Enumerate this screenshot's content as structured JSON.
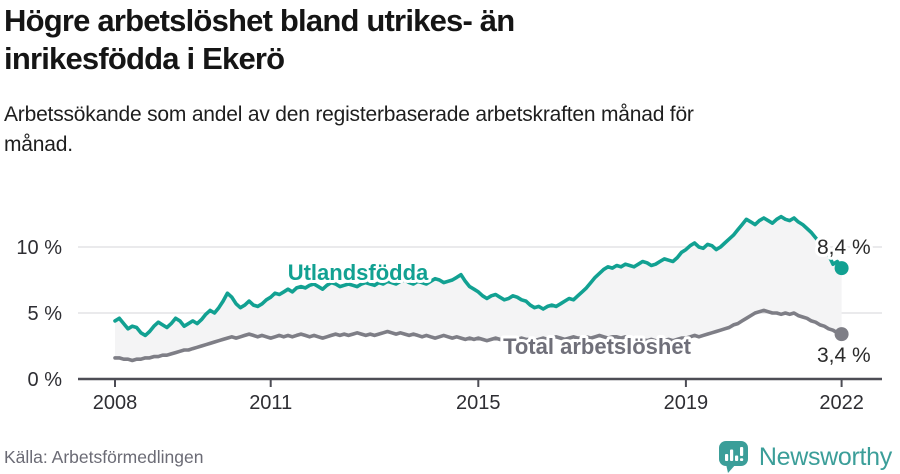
{
  "header": {
    "title": "Högre arbetslöshet bland utrikes- än inrikesfödda i Ekerö",
    "title_lines": [
      "Högre arbetslöshet bland utrikes- än",
      "inrikesfödda i Ekerö"
    ],
    "subtitle": "Arbetssökande som andel av den registerbaserade arbetskraften månad för månad.",
    "subtitle_lines": [
      "Arbetssökande som andel av den registerbaserade arbetskraften månad för",
      "månad."
    ]
  },
  "footer": {
    "source": "Källa: Arbetsförmedlingen",
    "brand": "Newsworthy"
  },
  "colors": {
    "foreign_line": "#12a192",
    "total_line": "#7e7e86",
    "total_label": "#6f6f79",
    "band_fill": "#f4f4f5",
    "gridline": "#e3e3e5",
    "axis": "#4d4d55",
    "annotation_text": "#2b2b2b",
    "brand_teal": "#3b9e99"
  },
  "chart_data": {
    "type": "line",
    "title": "Högre arbetslöshet bland utrikes- än inrikesfödda i Ekerö",
    "subtitle": "Arbetssökande som andel av den registerbaserade arbetskraften månad för månad.",
    "unit": "%",
    "frequency": "monthly",
    "x_start_year": 2008,
    "x_end": 2022.0,
    "ylim": [
      0,
      13.5
    ],
    "grid": "horizontal",
    "x_ticks": [
      2008,
      2011,
      2015,
      2019,
      2022
    ],
    "y_tick_values": [
      0,
      5,
      10
    ],
    "y_tick_labels": [
      "0 %",
      "5 %",
      "10 %"
    ],
    "band_fill": "#f4f4f5",
    "series": [
      {
        "name": "Utlandsfödda",
        "color": "#12a192",
        "end_label": "8,4 %",
        "end_value": 8.4,
        "values": [
          4.4,
          4.6,
          4.2,
          3.8,
          4.0,
          3.9,
          3.5,
          3.3,
          3.6,
          4.0,
          4.3,
          4.1,
          3.9,
          4.2,
          4.6,
          4.4,
          4.0,
          4.2,
          4.4,
          4.2,
          4.5,
          4.9,
          5.2,
          5.0,
          5.4,
          5.9,
          6.5,
          6.2,
          5.7,
          5.4,
          5.6,
          5.9,
          5.6,
          5.5,
          5.7,
          6.0,
          6.2,
          6.5,
          6.4,
          6.6,
          6.8,
          6.6,
          6.9,
          7.0,
          6.9,
          7.1,
          7.2,
          7.0,
          6.8,
          7.1,
          7.3,
          7.2,
          7.0,
          7.1,
          7.2,
          7.1,
          7.0,
          7.2,
          7.3,
          7.2,
          7.1,
          7.3,
          7.2,
          7.4,
          7.3,
          7.2,
          7.4,
          7.5,
          7.3,
          7.2,
          7.4,
          7.3,
          7.2,
          7.4,
          7.6,
          7.5,
          7.3,
          7.4,
          7.5,
          7.7,
          7.9,
          7.4,
          7.0,
          6.8,
          6.6,
          6.3,
          6.1,
          6.3,
          6.4,
          6.2,
          6.0,
          6.1,
          6.3,
          6.2,
          6.0,
          5.9,
          5.6,
          5.4,
          5.5,
          5.3,
          5.5,
          5.6,
          5.5,
          5.7,
          5.9,
          6.1,
          6.0,
          6.3,
          6.6,
          6.9,
          7.3,
          7.7,
          8.0,
          8.3,
          8.5,
          8.4,
          8.6,
          8.5,
          8.7,
          8.6,
          8.5,
          8.7,
          8.9,
          8.8,
          8.6,
          8.7,
          8.9,
          9.1,
          9.0,
          8.9,
          9.2,
          9.6,
          9.8,
          10.1,
          10.3,
          10.0,
          9.9,
          10.2,
          10.1,
          9.8,
          10.0,
          10.3,
          10.6,
          10.9,
          11.3,
          11.7,
          12.1,
          11.9,
          11.7,
          12.0,
          12.2,
          12.0,
          11.8,
          12.1,
          12.3,
          12.1,
          12.0,
          12.2,
          11.9,
          11.7,
          11.4,
          11.1,
          10.7,
          10.3,
          9.9,
          9.4,
          8.7,
          8.9,
          8.4
        ]
      },
      {
        "name": "Total arbetslöshet",
        "color": "#7e7e86",
        "end_label": "3,4 %",
        "end_value": 3.4,
        "values": [
          1.6,
          1.6,
          1.5,
          1.5,
          1.4,
          1.5,
          1.5,
          1.6,
          1.6,
          1.7,
          1.7,
          1.8,
          1.8,
          1.9,
          2.0,
          2.1,
          2.2,
          2.2,
          2.3,
          2.4,
          2.5,
          2.6,
          2.7,
          2.8,
          2.9,
          3.0,
          3.1,
          3.2,
          3.1,
          3.2,
          3.3,
          3.4,
          3.3,
          3.2,
          3.3,
          3.2,
          3.1,
          3.2,
          3.3,
          3.2,
          3.3,
          3.2,
          3.3,
          3.4,
          3.3,
          3.2,
          3.3,
          3.2,
          3.1,
          3.2,
          3.3,
          3.4,
          3.3,
          3.4,
          3.3,
          3.4,
          3.5,
          3.4,
          3.3,
          3.4,
          3.3,
          3.4,
          3.5,
          3.6,
          3.5,
          3.4,
          3.5,
          3.4,
          3.3,
          3.4,
          3.3,
          3.2,
          3.3,
          3.2,
          3.1,
          3.2,
          3.3,
          3.2,
          3.1,
          3.2,
          3.1,
          3.0,
          3.1,
          3.0,
          3.1,
          3.0,
          2.9,
          3.0,
          3.1,
          3.0,
          2.9,
          3.0,
          3.1,
          3.0,
          3.1,
          3.0,
          3.0,
          2.9,
          3.0,
          3.1,
          3.0,
          3.1,
          3.2,
          3.1,
          3.0,
          3.1,
          3.2,
          3.1,
          3.1,
          3.2,
          3.1,
          3.2,
          3.3,
          3.2,
          3.1,
          3.2,
          3.2,
          3.1,
          3.2,
          3.1,
          3.0,
          3.1,
          3.0,
          2.9,
          3.0,
          2.9,
          2.8,
          2.9,
          3.0,
          2.9,
          3.0,
          3.1,
          3.1,
          3.2,
          3.3,
          3.2,
          3.3,
          3.4,
          3.5,
          3.6,
          3.7,
          3.8,
          3.9,
          4.1,
          4.2,
          4.4,
          4.6,
          4.8,
          5.0,
          5.1,
          5.2,
          5.1,
          5.0,
          5.0,
          4.9,
          5.0,
          4.9,
          5.0,
          4.8,
          4.7,
          4.6,
          4.4,
          4.3,
          4.1,
          4.0,
          3.8,
          3.7,
          3.5,
          3.4
        ]
      }
    ]
  }
}
